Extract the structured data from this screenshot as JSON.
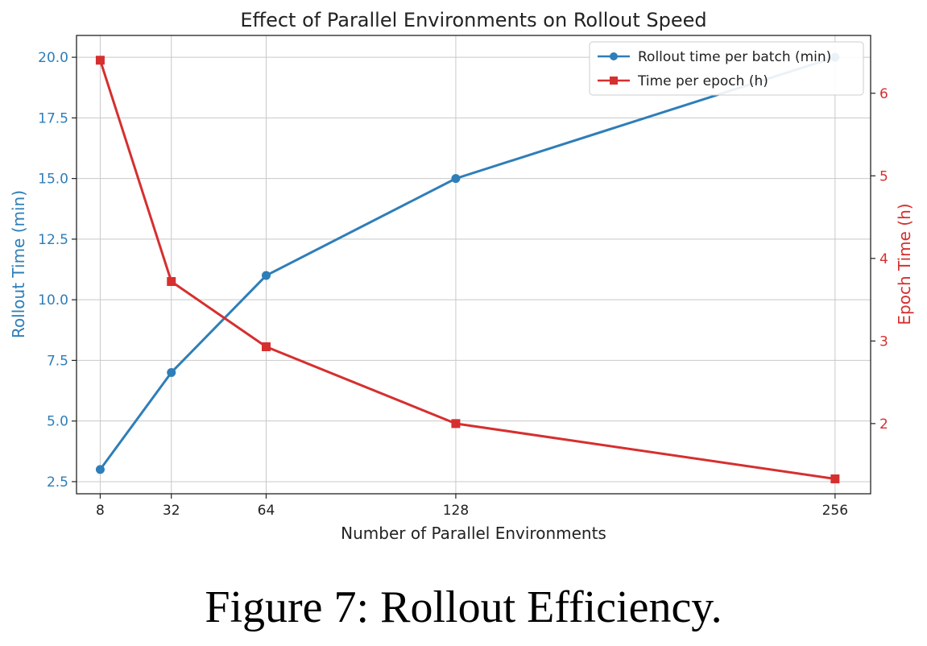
{
  "colors": {
    "left": "#2e7eb8",
    "right": "#d62f2f",
    "grid": "#c8c8c8",
    "axis": "#222222"
  },
  "caption": "Figure 7: Rollout Efficiency.",
  "chart_data": {
    "type": "line",
    "title": "Effect of Parallel Environments on Rollout Speed",
    "xlabel": "Number of Parallel Environments",
    "ylabel": "Rollout Time (min)",
    "y2label": "Epoch Time (h)",
    "x": [
      8,
      32,
      64,
      128,
      256
    ],
    "xticks": [
      8,
      32,
      64,
      128,
      256
    ],
    "xlim": [
      0,
      268
    ],
    "ylim": [
      2.0,
      20.9
    ],
    "yticks": [
      2.5,
      5.0,
      7.5,
      10.0,
      12.5,
      15.0,
      17.5,
      20.0
    ],
    "ytick_labels": [
      "2.5",
      "5.0",
      "7.5",
      "10.0",
      "12.5",
      "15.0",
      "17.5",
      "20.0"
    ],
    "y2lim": [
      1.15,
      6.7
    ],
    "y2ticks": [
      2,
      3,
      4,
      5,
      6
    ],
    "y2tick_labels": [
      "2",
      "3",
      "4",
      "5",
      "6"
    ],
    "grid": true,
    "legend_position": "top-right",
    "series": [
      {
        "name": "Rollout time per batch (min)",
        "axis": "left",
        "marker": "circle",
        "values": [
          3.0,
          7.0,
          11.0,
          15.0,
          20.0
        ]
      },
      {
        "name": "Time per epoch (h)",
        "axis": "right",
        "marker": "square",
        "values": [
          6.4,
          3.72,
          2.93,
          2.0,
          1.33
        ]
      }
    ]
  }
}
